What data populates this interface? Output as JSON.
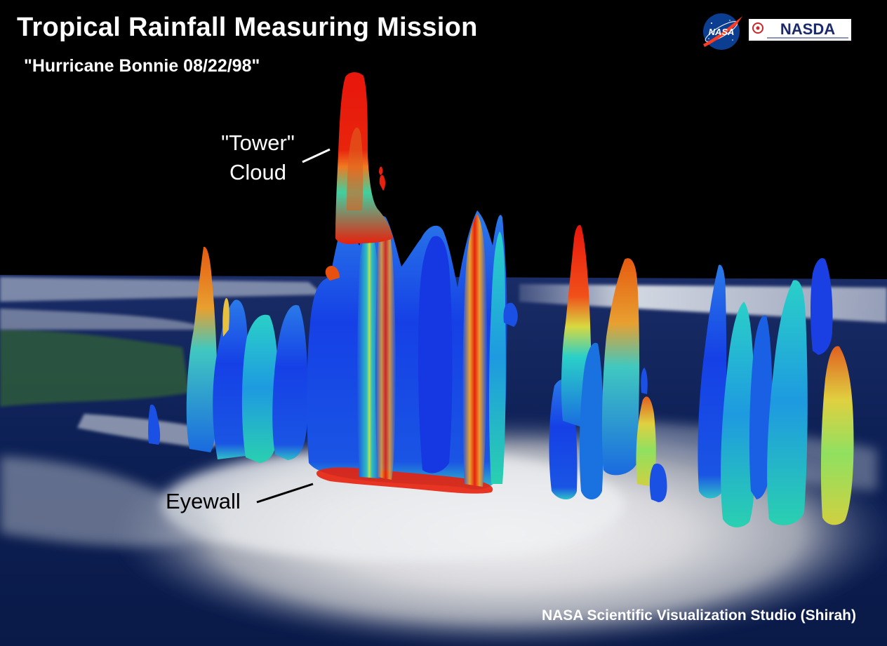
{
  "title": "Tropical Rainfall Measuring Mission",
  "subtitle": "\"Hurricane Bonnie 08/22/98\"",
  "annotations": {
    "tower_line1": "\"Tower\"",
    "tower_line2": "Cloud",
    "eyewall": "Eyewall"
  },
  "credit": "NASA Scientific Visualization Studio (Shirah)",
  "logos": {
    "nasa": "NASA",
    "nasda": "NASDA"
  },
  "colors": {
    "background": "#000000",
    "ocean": "#0c1f54",
    "land": "#2d5a3a",
    "cloud": "#e8e8ea",
    "rain_low": "#1238e6",
    "rain_mid": "#2ad0c8",
    "rain_midhigh": "#e6e040",
    "rain_high": "#e8160c",
    "nasa_blue": "#0b3d91",
    "nasa_red": "#fc3d21"
  }
}
